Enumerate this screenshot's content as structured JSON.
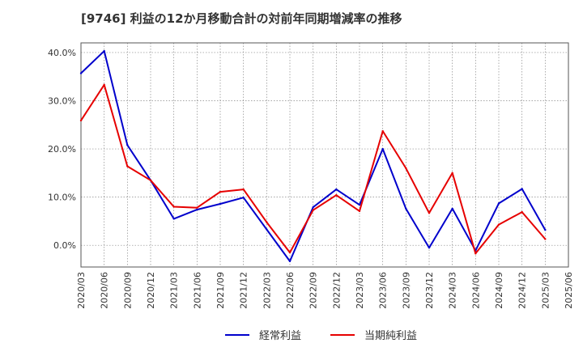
{
  "chart_data": {
    "type": "line",
    "title": "[9746]  利益の12か月移動合計の対前年同期増減率の推移",
    "categories": [
      "2020/03",
      "2020/06",
      "2020/09",
      "2020/12",
      "2021/03",
      "2021/06",
      "2021/09",
      "2021/12",
      "2022/03",
      "2022/06",
      "2022/09",
      "2022/12",
      "2023/03",
      "2023/06",
      "2023/09",
      "2023/12",
      "2024/03",
      "2024/06",
      "2024/09",
      "2024/12",
      "2025/03",
      "2025/06"
    ],
    "y_ticks": [
      0,
      10,
      20,
      30,
      40
    ],
    "y_tick_labels": [
      "0.0%",
      "10.0%",
      "20.0%",
      "30.0%",
      "40.0%"
    ],
    "ylim": [
      -4.5,
      42
    ],
    "xlabel": "",
    "ylabel": "",
    "grid": true,
    "legend_position": "bottom",
    "series": [
      {
        "name": "経常利益",
        "color": "#0000cc",
        "values": [
          35.7,
          40.3,
          20.8,
          13.5,
          5.5,
          7.4,
          8.6,
          9.9,
          3.3,
          -3.3,
          7.9,
          11.6,
          8.4,
          20.0,
          7.6,
          -0.5,
          7.6,
          -1.1,
          8.7,
          11.7,
          3.2,
          null
        ]
      },
      {
        "name": "当期純利益",
        "color": "#e60000",
        "values": [
          25.9,
          33.3,
          16.4,
          13.5,
          8.0,
          7.8,
          11.1,
          11.6,
          4.8,
          -1.5,
          7.3,
          10.4,
          7.1,
          23.7,
          16.0,
          6.7,
          15.0,
          -1.7,
          4.3,
          6.9,
          1.3,
          null
        ]
      }
    ]
  }
}
